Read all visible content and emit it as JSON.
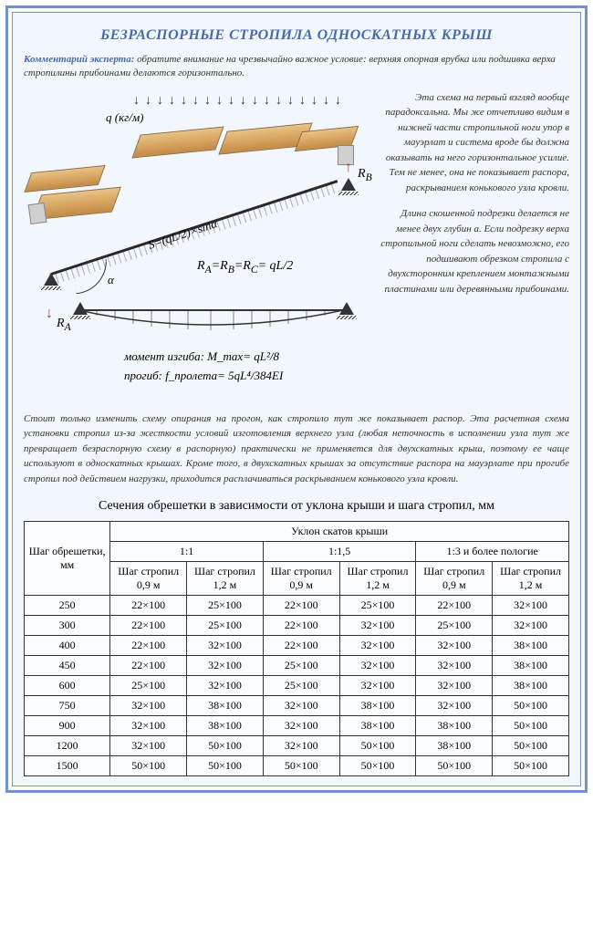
{
  "title": "БЕЗРАСПОРНЫЕ СТРОПИЛА ОДНОСКАТНЫХ КРЫШ",
  "expert_label": "Комментарий эксперта:",
  "expert_text": "обратите внимание на чрезвычайно важное условие: верхняя опорная врубка или подшивка верха стропилины прибоинами делаются горизонтально.",
  "side_para_1": "Эта схема на первый взгляд вообще парадоксальна. Мы же отчетливо видим в нижней части стропильной ноги упор в мауэрлат и система вроде бы должна оказывать на него горизонтальное усилие. Тем не менее, она не показывает распора, раскрыванием конькового узла кровли.",
  "side_para_2": "Длина скошенной подрезки делается не менее двух глубин а. Если подрезку верха стропильной ноги сделать невозможно, его подшивают обрезком стропила с двухсторонним креплением монтажными пластинами или деревянными прибоинами.",
  "body_para": "Стоит только изменить схему опирания на прогон, как стропило тут же показывает распор. Эта расчетная схема установки стропил из-за жесткости условий изготовления верхнего узла (любая неточность в исполнении узла тут же превращает безраспорную схему в распорную) практически не применяется для двухскатных крыш, поэтому ее чаще используют в односкатных крышах. Кроме того, в двухскатных крышах за отсутствие распора на мауэрлате при прогибе стропил под действием нагрузки, приходится расплачиваться раскрыванием конькового узла кровли.",
  "diagram": {
    "q_label": "q (кг/м)",
    "s_label": "S=(qL/2)×sinα",
    "rb_label": "R_B",
    "ra_label": "R_A",
    "alpha": "α",
    "eq": "R_A=R_B=R_C= qL/2",
    "moment": "момент изгиба: M_max= qL²/8",
    "deflection": "прогиб: f_пролета= 5qL⁴/384EI",
    "arrow_color": "#c93030",
    "beam_color": "#2a2a2a",
    "wood_fill": "#d9a662"
  },
  "table": {
    "title": "Сечения обрешетки в зависимости от уклона крыши и шага стропил, мм",
    "row_header": "Шаг обрешетки, мм",
    "group_header": "Уклон скатов крыши",
    "slopes": [
      "1:1",
      "1:1,5",
      "1:3 и более пологие"
    ],
    "sub_cols": [
      "Шаг стропил 0,9 м",
      "Шаг стропил 1,2 м"
    ],
    "rows": [
      {
        "step": "250",
        "v": [
          "22×100",
          "25×100",
          "22×100",
          "25×100",
          "22×100",
          "32×100"
        ]
      },
      {
        "step": "300",
        "v": [
          "22×100",
          "25×100",
          "22×100",
          "32×100",
          "25×100",
          "32×100"
        ]
      },
      {
        "step": "400",
        "v": [
          "22×100",
          "32×100",
          "22×100",
          "32×100",
          "32×100",
          "38×100"
        ]
      },
      {
        "step": "450",
        "v": [
          "22×100",
          "32×100",
          "25×100",
          "32×100",
          "32×100",
          "38×100"
        ]
      },
      {
        "step": "600",
        "v": [
          "25×100",
          "32×100",
          "25×100",
          "32×100",
          "32×100",
          "38×100"
        ]
      },
      {
        "step": "750",
        "v": [
          "32×100",
          "38×100",
          "32×100",
          "38×100",
          "32×100",
          "50×100"
        ]
      },
      {
        "step": "900",
        "v": [
          "32×100",
          "38×100",
          "32×100",
          "38×100",
          "38×100",
          "50×100"
        ]
      },
      {
        "step": "1200",
        "v": [
          "32×100",
          "50×100",
          "32×100",
          "50×100",
          "38×100",
          "50×100"
        ]
      },
      {
        "step": "1500",
        "v": [
          "50×100",
          "50×100",
          "50×100",
          "50×100",
          "50×100",
          "50×100"
        ]
      }
    ]
  },
  "colors": {
    "border": "#7292c9",
    "bg": "#f2f6fd",
    "title": "#4a6ba8",
    "table_border": "#333333"
  }
}
